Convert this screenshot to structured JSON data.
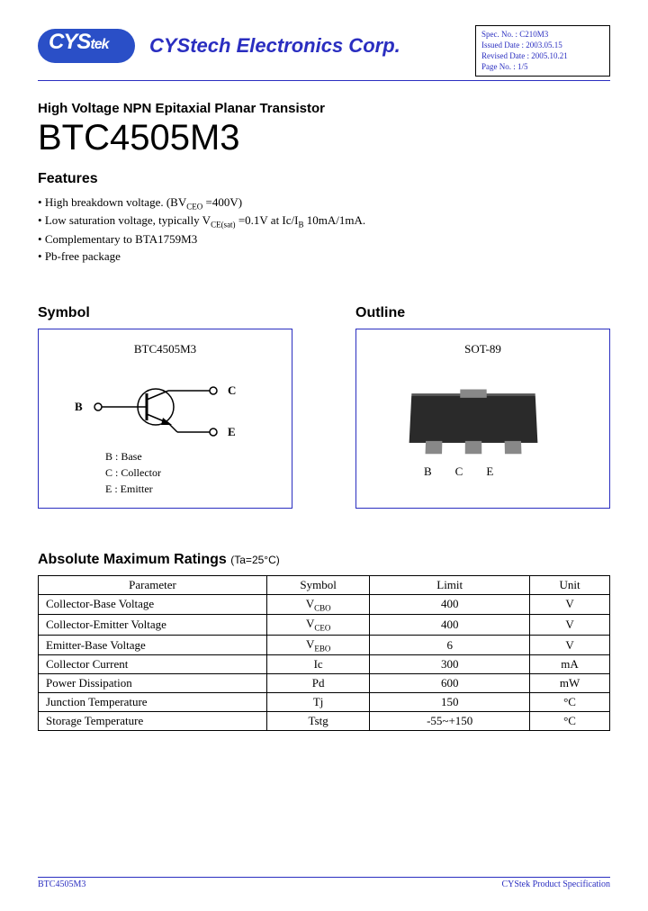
{
  "header": {
    "logo_main": "CYS",
    "logo_sub": "tek",
    "company": "CYStech Electronics Corp.",
    "spec": {
      "spec_no_label": "Spec. No. :",
      "spec_no": "C210M3",
      "issued_label": "Issued Date :",
      "issued": "2003.05.15",
      "revised_label": "Revised Date :",
      "revised": "2005.10.21",
      "page_label": "Page No. :",
      "page": "1/5"
    }
  },
  "subtitle": "High Voltage NPN Epitaxial Planar Transistor",
  "part_number": "BTC4505M3",
  "features_title": "Features",
  "features": [
    "High breakdown voltage.  (BV_CEO =400V)",
    "Low saturation voltage, typically V_CE(sat) =0.1V at Ic/I_B 10mA/1mA.",
    "Complementary to BTA1759M3",
    "Pb-free package"
  ],
  "symbol": {
    "title": "Symbol",
    "label": "BTC4505M3",
    "pins": {
      "b": "B",
      "c": "C",
      "e": "E"
    },
    "legend": [
      "B : Base",
      "C : Collector",
      "E : Emitter"
    ]
  },
  "outline": {
    "title": "Outline",
    "package": "SOT-89",
    "pins": [
      "B",
      "C",
      "E"
    ]
  },
  "ratings": {
    "title": "Absolute Maximum Ratings",
    "condition": "(Ta=25°C)",
    "columns": [
      "Parameter",
      "Symbol",
      "Limit",
      "Unit"
    ],
    "col_widths": [
      "40%",
      "18%",
      "28%",
      "14%"
    ],
    "rows": [
      [
        "Collector-Base Voltage",
        "V_CBO",
        "400",
        "V"
      ],
      [
        "Collector-Emitter Voltage",
        "V_CEO",
        "400",
        "V"
      ],
      [
        "Emitter-Base Voltage",
        "V_EBO",
        "6",
        "V"
      ],
      [
        "Collector Current",
        "Ic",
        "300",
        "mA"
      ],
      [
        "Power Dissipation",
        "Pd",
        "600",
        "mW"
      ],
      [
        "Junction Temperature",
        "Tj",
        "150",
        "°C"
      ],
      [
        "Storage Temperature",
        "Tstg",
        "-55~+150",
        "°C"
      ]
    ]
  },
  "footer": {
    "left": "BTC4505M3",
    "right": "CYStek Product Specification"
  },
  "colors": {
    "brand_blue": "#2a4fc7",
    "text_blue": "#2a2ec0",
    "black": "#000000",
    "pkg_dark": "#2a2a2a",
    "pkg_light": "#888888"
  }
}
